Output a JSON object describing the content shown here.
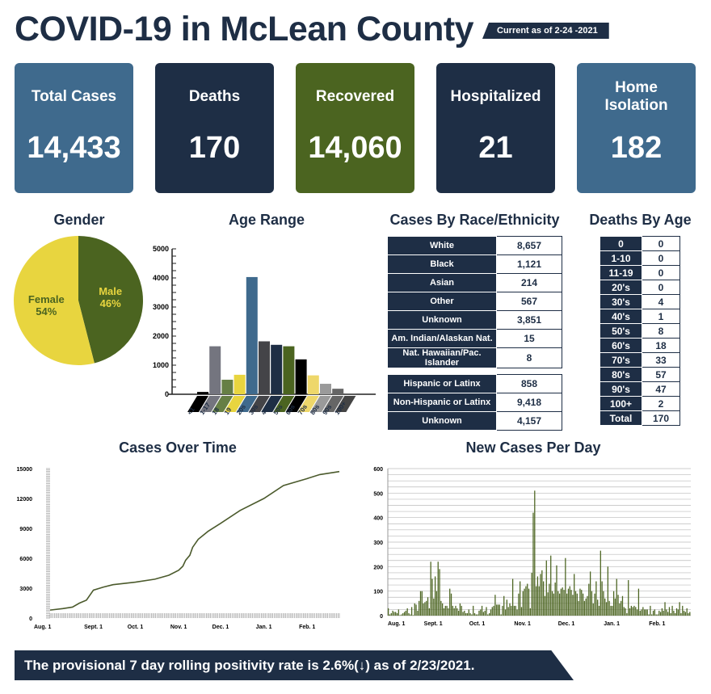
{
  "header": {
    "title": "COVID-19 in McLean County",
    "as_of": "Current as of 2-24 -2021"
  },
  "cards": [
    {
      "label": "Total Cases",
      "value": "14,433",
      "color": "#3f6a8d"
    },
    {
      "label": "Deaths",
      "value": "170",
      "color": "#1e2e45"
    },
    {
      "label": "Recovered",
      "value": "14,060",
      "color": "#4b6420"
    },
    {
      "label": "Hospitalized",
      "value": "21",
      "color": "#1e2e45"
    },
    {
      "label": "Home Isolation",
      "value": "182",
      "color": "#3f6a8d"
    }
  ],
  "sections": {
    "gender": "Gender",
    "age": "Age Range",
    "race": "Cases By Race/Ethnicity",
    "deaths_age": "Deaths By Age",
    "over_time": "Cases Over Time",
    "per_day": "New Cases Per Day"
  },
  "race_table": {
    "rows": [
      [
        "White",
        "8,657"
      ],
      [
        "Black",
        "1,121"
      ],
      [
        "Asian",
        "214"
      ],
      [
        "Other",
        "567"
      ],
      [
        "Unknown",
        "3,851"
      ],
      [
        "Am. Indian/Alaskan Nat.",
        "15"
      ],
      [
        "Nat. Hawaiian/Pac. Islander",
        "8"
      ]
    ],
    "ethnicity_rows": [
      [
        "Hispanic or Latinx",
        "858"
      ],
      [
        "Non-Hispanic or Latinx",
        "9,418"
      ],
      [
        "Unknown",
        "4,157"
      ]
    ]
  },
  "deaths_table": {
    "rows": [
      [
        "0",
        "0"
      ],
      [
        "1-10",
        "0"
      ],
      [
        "11-19",
        "0"
      ],
      [
        "20's",
        "0"
      ],
      [
        "30's",
        "4"
      ],
      [
        "40's",
        "1"
      ],
      [
        "50's",
        "8"
      ],
      [
        "60's",
        "18"
      ],
      [
        "70's",
        "33"
      ],
      [
        "80's",
        "57"
      ],
      [
        "90's",
        "47"
      ],
      [
        "100+",
        "2"
      ],
      [
        "Total",
        "170"
      ]
    ]
  },
  "footer": {
    "text": "The provisional 7 day rolling positivity rate is 2.6%(↓) as of 2/23/2021."
  },
  "chart_data": [
    {
      "type": "pie",
      "title": "Gender",
      "slices": [
        {
          "label": "Male",
          "value": 46,
          "display": "46%",
          "color": "#4b6420",
          "label_color": "#e8d53f"
        },
        {
          "label": "Female",
          "value": 54,
          "display": "54%",
          "color": "#e8d53f",
          "label_color": "#4b6420"
        }
      ]
    },
    {
      "type": "bar",
      "title": "Age Range",
      "categories": [
        "<1",
        "1-17",
        "18",
        "19",
        "20s",
        "30s",
        "40s",
        "50s",
        "60s",
        "70s",
        "80s",
        "90s",
        "100+"
      ],
      "values": [
        80,
        1650,
        500,
        670,
        4030,
        1820,
        1700,
        1650,
        1200,
        650,
        360,
        190,
        10
      ],
      "colors": [
        "#000000",
        "#74757f",
        "#667f45",
        "#e8d53f",
        "#3f6a8d",
        "#444448",
        "#1e2e45",
        "#4b6420",
        "#000000",
        "#eed76a",
        "#9a9a9a",
        "#666666",
        "#444444"
      ],
      "yticks": [
        0,
        1000,
        2000,
        3000,
        4000,
        5000
      ],
      "ylim": [
        0,
        5000
      ]
    },
    {
      "type": "line",
      "title": "Cases Over Time",
      "color": "#4b5a2c",
      "ylim": [
        0,
        15000
      ],
      "yticks": [
        0,
        3000,
        6000,
        9000,
        12000,
        15000
      ],
      "xticks": [
        "Aug. 1",
        "Sept. 1",
        "Oct. 1",
        "Nov. 1",
        "Dec. 1",
        "Jan. 1",
        "Feb. 1"
      ],
      "points": [
        [
          "2020-08-01",
          800
        ],
        [
          "2020-08-10",
          950
        ],
        [
          "2020-08-17",
          1100
        ],
        [
          "2020-08-22",
          1500
        ],
        [
          "2020-08-27",
          1800
        ],
        [
          "2020-09-01",
          2800
        ],
        [
          "2020-09-08",
          3100
        ],
        [
          "2020-09-15",
          3350
        ],
        [
          "2020-10-01",
          3600
        ],
        [
          "2020-10-15",
          3900
        ],
        [
          "2020-10-25",
          4300
        ],
        [
          "2020-11-01",
          4800
        ],
        [
          "2020-11-04",
          5200
        ],
        [
          "2020-11-06",
          5800
        ],
        [
          "2020-11-09",
          6300
        ],
        [
          "2020-11-11",
          7100
        ],
        [
          "2020-11-15",
          7900
        ],
        [
          "2020-11-22",
          8700
        ],
        [
          "2020-12-01",
          9500
        ],
        [
          "2020-12-15",
          10800
        ],
        [
          "2021-01-01",
          12000
        ],
        [
          "2021-01-15",
          13300
        ],
        [
          "2021-02-01",
          14000
        ],
        [
          "2021-02-10",
          14400
        ],
        [
          "2021-02-24",
          14700
        ]
      ]
    },
    {
      "type": "bar",
      "title": "New Cases Per Day",
      "color": "#4b6420",
      "ylim": [
        0,
        600
      ],
      "yticks": [
        0,
        100,
        200,
        300,
        400,
        500,
        600
      ],
      "xticks": [
        "Aug. 1",
        "Sept. 1",
        "Oct. 1",
        "Nov. 1",
        "Dec. 1",
        "Jan. 1",
        "Feb. 1"
      ],
      "start": "2020-08-01",
      "values": [
        30,
        5,
        10,
        20,
        15,
        15,
        10,
        25,
        2,
        5,
        10,
        15,
        20,
        30,
        10,
        5,
        35,
        2,
        50,
        45,
        20,
        60,
        100,
        100,
        50,
        55,
        60,
        75,
        30,
        220,
        150,
        70,
        160,
        100,
        220,
        190,
        60,
        50,
        30,
        40,
        40,
        30,
        110,
        90,
        40,
        30,
        40,
        30,
        20,
        50,
        40,
        15,
        20,
        10,
        10,
        25,
        10,
        5,
        40,
        10,
        5,
        5,
        20,
        25,
        40,
        15,
        20,
        35,
        5,
        10,
        25,
        35,
        40,
        85,
        45,
        45,
        45,
        5,
        40,
        80,
        25,
        65,
        35,
        50,
        40,
        150,
        40,
        40,
        25,
        90,
        140,
        35,
        100,
        110,
        120,
        130,
        110,
        30,
        175,
        420,
        510,
        120,
        160,
        120,
        170,
        185,
        140,
        80,
        225,
        95,
        130,
        245,
        100,
        90,
        135,
        205,
        100,
        90,
        110,
        115,
        105,
        235,
        90,
        110,
        120,
        105,
        85,
        170,
        100,
        90,
        60,
        110,
        105,
        90,
        60,
        70,
        80,
        130,
        180,
        100,
        50,
        90,
        140,
        65,
        40,
        265,
        140,
        100,
        70,
        55,
        200,
        60,
        40,
        40,
        100,
        70,
        150,
        85,
        50,
        60,
        80,
        35,
        30,
        10,
        145,
        30,
        40,
        35,
        40,
        35,
        25,
        110,
        20,
        25,
        35,
        25,
        25,
        25,
        5,
        40,
        5,
        20,
        25,
        5,
        5,
        20,
        15,
        30,
        20,
        55,
        25,
        15,
        35,
        10,
        40,
        20,
        10,
        30,
        25,
        55,
        10,
        40,
        20,
        15,
        30,
        10,
        15
      ]
    }
  ]
}
